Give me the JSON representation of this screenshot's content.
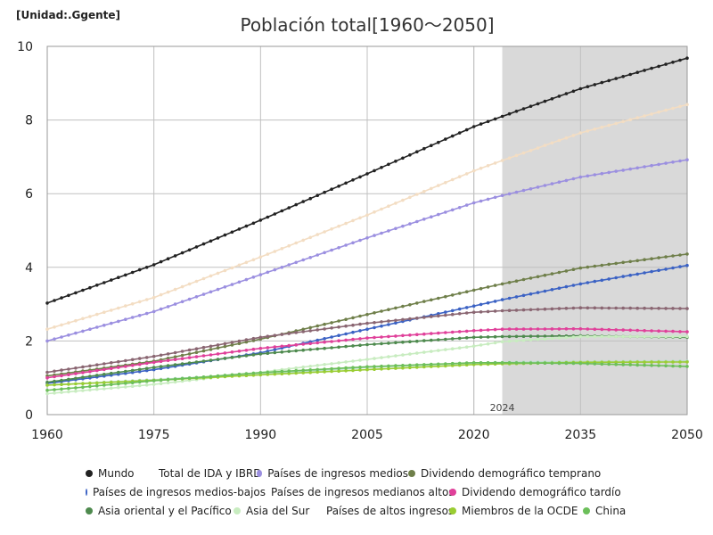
{
  "unit_label": "[Unidad:.Ggente]",
  "chart_data": {
    "type": "line",
    "title": "Población total[1960～2050]",
    "xlabel": "",
    "ylabel": "",
    "xlim": [
      1960,
      2050
    ],
    "ylim": [
      0,
      10
    ],
    "x_ticks": [
      "1960",
      "1975",
      "1990",
      "2005",
      "2020",
      "2035",
      "2050"
    ],
    "x_tick_values": [
      1960,
      1975,
      1990,
      2005,
      2020,
      2035,
      2050
    ],
    "y_ticks": [
      "0",
      "2",
      "4",
      "6",
      "8",
      "10"
    ],
    "y_tick_values": [
      0,
      2,
      4,
      6,
      8,
      10
    ],
    "grid": true,
    "extra_gridline_x": 2020,
    "shaded_region": {
      "from": 2024,
      "to": 2050,
      "label": "2024",
      "color": "#d9d9d9"
    },
    "legend_position": "bottom",
    "series": [
      {
        "name": "Mundo",
        "color": "#222222",
        "points": [
          [
            1960,
            3.03
          ],
          [
            1975,
            4.07
          ],
          [
            1990,
            5.28
          ],
          [
            2005,
            6.54
          ],
          [
            2020,
            7.82
          ],
          [
            2024,
            8.1
          ],
          [
            2035,
            8.85
          ],
          [
            2050,
            9.68
          ]
        ]
      },
      {
        "name": "Total de IDA y IBRD",
        "color": "#f3ddc3",
        "points": [
          [
            1960,
            2.32
          ],
          [
            1975,
            3.18
          ],
          [
            1990,
            4.28
          ],
          [
            2005,
            5.42
          ],
          [
            2020,
            6.62
          ],
          [
            2024,
            6.9
          ],
          [
            2035,
            7.65
          ],
          [
            2050,
            8.42
          ]
        ]
      },
      {
        "name": "Países de ingresos medios",
        "color": "#9b8fe0",
        "points": [
          [
            1960,
            2.0
          ],
          [
            1975,
            2.8
          ],
          [
            1990,
            3.8
          ],
          [
            2005,
            4.8
          ],
          [
            2020,
            5.75
          ],
          [
            2024,
            5.95
          ],
          [
            2035,
            6.45
          ],
          [
            2050,
            6.92
          ]
        ]
      },
      {
        "name": "Dividendo demográfico temprano",
        "color": "#6f7f4a",
        "points": [
          [
            1960,
            1.05
          ],
          [
            1975,
            1.45
          ],
          [
            1990,
            2.05
          ],
          [
            2005,
            2.72
          ],
          [
            2020,
            3.38
          ],
          [
            2024,
            3.55
          ],
          [
            2035,
            3.98
          ],
          [
            2050,
            4.36
          ]
        ]
      },
      {
        "name": "Países de ingresos medios-bajos",
        "color": "#3b62c4",
        "points": [
          [
            1960,
            0.85
          ],
          [
            1975,
            1.22
          ],
          [
            1990,
            1.68
          ],
          [
            2005,
            2.32
          ],
          [
            2020,
            2.95
          ],
          [
            2024,
            3.12
          ],
          [
            2035,
            3.55
          ],
          [
            2050,
            4.05
          ]
        ]
      },
      {
        "name": "Países de ingresos medianos altos",
        "color": "#8a6672",
        "points": [
          [
            1960,
            1.15
          ],
          [
            1975,
            1.58
          ],
          [
            1990,
            2.1
          ],
          [
            2005,
            2.48
          ],
          [
            2020,
            2.78
          ],
          [
            2024,
            2.82
          ],
          [
            2035,
            2.9
          ],
          [
            2050,
            2.88
          ]
        ]
      },
      {
        "name": "Dividendo demográfico tardío",
        "color": "#e0409a",
        "points": [
          [
            1960,
            1.0
          ],
          [
            1975,
            1.42
          ],
          [
            1990,
            1.8
          ],
          [
            2005,
            2.08
          ],
          [
            2020,
            2.28
          ],
          [
            2024,
            2.32
          ],
          [
            2035,
            2.33
          ],
          [
            2050,
            2.25
          ]
        ]
      },
      {
        "name": "Asia oriental y el Pacífico",
        "color": "#4e8a4e",
        "points": [
          [
            1960,
            0.88
          ],
          [
            1975,
            1.28
          ],
          [
            1990,
            1.65
          ],
          [
            2005,
            1.9
          ],
          [
            2020,
            2.1
          ],
          [
            2024,
            2.12
          ],
          [
            2035,
            2.14
          ],
          [
            2050,
            2.1
          ]
        ]
      },
      {
        "name": "Asia del Sur",
        "color": "#c8ecc0",
        "points": [
          [
            1960,
            0.57
          ],
          [
            1975,
            0.82
          ],
          [
            1990,
            1.15
          ],
          [
            2005,
            1.5
          ],
          [
            2020,
            1.86
          ],
          [
            2024,
            1.98
          ],
          [
            2035,
            2.12
          ],
          [
            2050,
            2.12
          ]
        ]
      },
      {
        "name": "Países de altos ingresos",
        "color": "#b6dcc8",
        "points": [
          [
            1960,
            0.8
          ],
          [
            1975,
            0.95
          ],
          [
            1990,
            1.1
          ],
          [
            2005,
            1.28
          ],
          [
            2020,
            1.4
          ],
          [
            2024,
            1.42
          ],
          [
            2035,
            1.44
          ],
          [
            2050,
            1.45
          ]
        ]
      },
      {
        "name": "Miembros de la OCDE",
        "color": "#9acd32",
        "points": [
          [
            1960,
            0.8
          ],
          [
            1975,
            0.93
          ],
          [
            1990,
            1.08
          ],
          [
            2005,
            1.22
          ],
          [
            2020,
            1.36
          ],
          [
            2024,
            1.38
          ],
          [
            2035,
            1.42
          ],
          [
            2050,
            1.43
          ]
        ]
      },
      {
        "name": "China",
        "color": "#6cbf5a",
        "points": [
          [
            1960,
            0.66
          ],
          [
            1975,
            0.92
          ],
          [
            1990,
            1.14
          ],
          [
            2005,
            1.3
          ],
          [
            2020,
            1.41
          ],
          [
            2024,
            1.41
          ],
          [
            2035,
            1.39
          ],
          [
            2050,
            1.31
          ]
        ]
      }
    ]
  }
}
